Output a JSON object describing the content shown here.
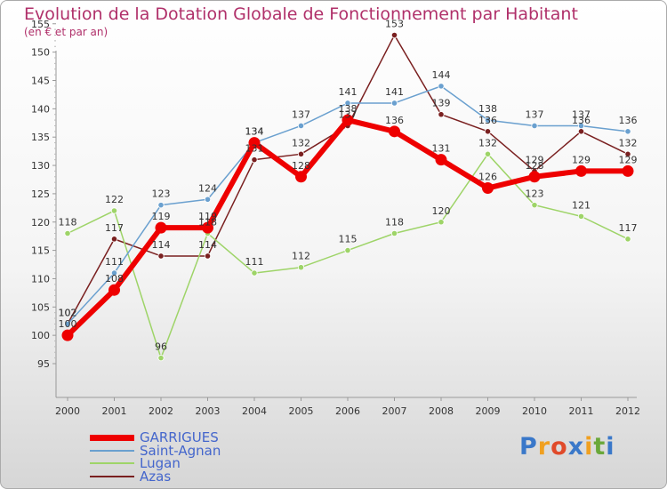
{
  "title": "Evolution de la Dotation Globale de Fonctionnement par Habitant",
  "subtitle": "(en € et par an)",
  "brand": {
    "letters": [
      "P",
      "r",
      "o",
      "x",
      "i",
      "t",
      "i"
    ],
    "colors": [
      "#3a78c9",
      "#f0a020",
      "#e04a2a",
      "#3a78c9",
      "#f0a020",
      "#6aa83a",
      "#3a78c9"
    ]
  },
  "chart_data": {
    "type": "line",
    "title": "Evolution de la Dotation Globale de Fonctionnement par Habitant",
    "subtitle": "(en € et par an)",
    "x": [
      "2000",
      "2001",
      "2002",
      "2003",
      "2004",
      "2005",
      "2006",
      "2007",
      "2008",
      "2009",
      "2010",
      "2011",
      "2012"
    ],
    "ylim": [
      95,
      155
    ],
    "yticks": [
      95,
      100,
      105,
      110,
      115,
      120,
      125,
      130,
      135,
      140,
      145,
      150,
      155
    ],
    "grid": false,
    "legend": "bottom-left",
    "series": [
      {
        "name": "GARRIGUES",
        "color": "#ee0000",
        "values": [
          100,
          108,
          119,
          119,
          134,
          128,
          138,
          136,
          131,
          126,
          128,
          129,
          129
        ]
      },
      {
        "name": "Saint-Agnan",
        "color": "#6aa0cf",
        "values": [
          102,
          111,
          123,
          124,
          134,
          137,
          141,
          141,
          144,
          138,
          137,
          137,
          136
        ]
      },
      {
        "name": "Lugan",
        "color": "#9ed468",
        "values": [
          118,
          122,
          96,
          118,
          111,
          112,
          115,
          118,
          120,
          132,
          123,
          121,
          117
        ]
      },
      {
        "name": "Azas",
        "color": "#7a2020",
        "values": [
          102,
          117,
          114,
          114,
          131,
          132,
          137,
          153,
          139,
          136,
          129,
          136,
          132
        ]
      }
    ]
  }
}
